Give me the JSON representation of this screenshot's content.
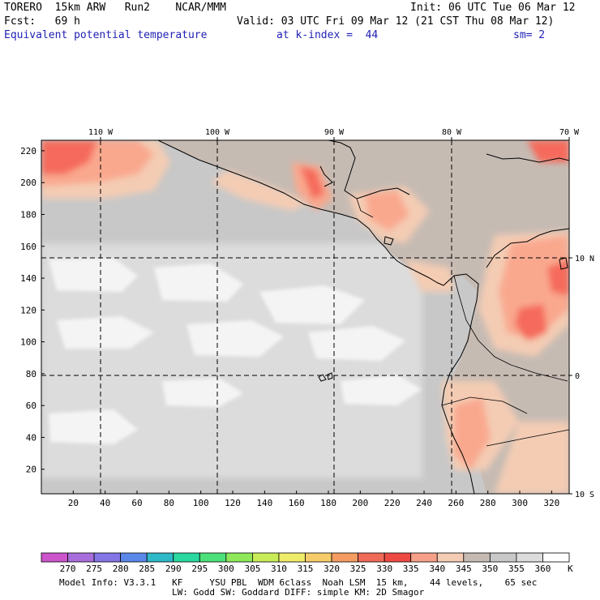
{
  "header": {
    "model": "TORERO  15km ARW   Run2    NCAR/MMM",
    "init": "Init: 06 UTC Tue 06 Mar 12",
    "fcst": "Fcst:   69 h",
    "valid": "Valid: 03 UTC Fri 09 Mar 12 (21 CST Thu 08 Mar 12)",
    "field": "Equivalent potential temperature",
    "level": "at k-index =  44",
    "smooth": "sm= 2"
  },
  "map": {
    "top_lon_labels": [
      "110 W",
      "100 W",
      "90 W",
      "80 W",
      "70 W"
    ],
    "right_lat_labels": [
      "10 N",
      "0",
      "10 S"
    ],
    "y_axis_labels": [
      "220",
      "200",
      "180",
      "160",
      "140",
      "120",
      "100",
      "80",
      "60",
      "40",
      "20"
    ],
    "x_axis_labels": [
      "20",
      "40",
      "60",
      "80",
      "100",
      "120",
      "140",
      "160",
      "180",
      "200",
      "220",
      "240",
      "260",
      "280",
      "300",
      "320"
    ],
    "colors": {
      "ocean_base": "#c8c8c8",
      "ocean_light": "#dcdcdc",
      "ocean_white": "#f4f4f4",
      "land_base": "#c6bbb3",
      "warm_340": "#f4ccb4",
      "warm_335": "#f9a88e",
      "warm_330": "#f56b5c",
      "warm_325": "#f04a43",
      "coast": "#000000",
      "grid": "#000000"
    }
  },
  "colorbar": {
    "unit": "K",
    "labels": [
      "270",
      "275",
      "280",
      "285",
      "290",
      "295",
      "300",
      "305",
      "310",
      "315",
      "320",
      "325",
      "330",
      "335",
      "340",
      "345",
      "350",
      "355",
      "360"
    ],
    "colors": [
      "#cc55cc",
      "#a86edc",
      "#8476e6",
      "#5a88e8",
      "#2fb8c8",
      "#2ad8a0",
      "#4ce07a",
      "#8ee85a",
      "#c8ec58",
      "#eeec6a",
      "#f6cc6a",
      "#f49c62",
      "#f06a58",
      "#ee4a44",
      "#f6a08a",
      "#f4ccb4",
      "#c6bbb3",
      "#c8c8c8",
      "#dcdcdc",
      "#ffffff"
    ]
  },
  "footer": {
    "line1": "Model Info: V3.3.1   KF     YSU PBL  WDM 6class  Noah LSM  15 km,    44 levels,    65 sec",
    "line2": "LW: Godd SW: Goddard DIFF: simple KM: 2D Smagor"
  }
}
